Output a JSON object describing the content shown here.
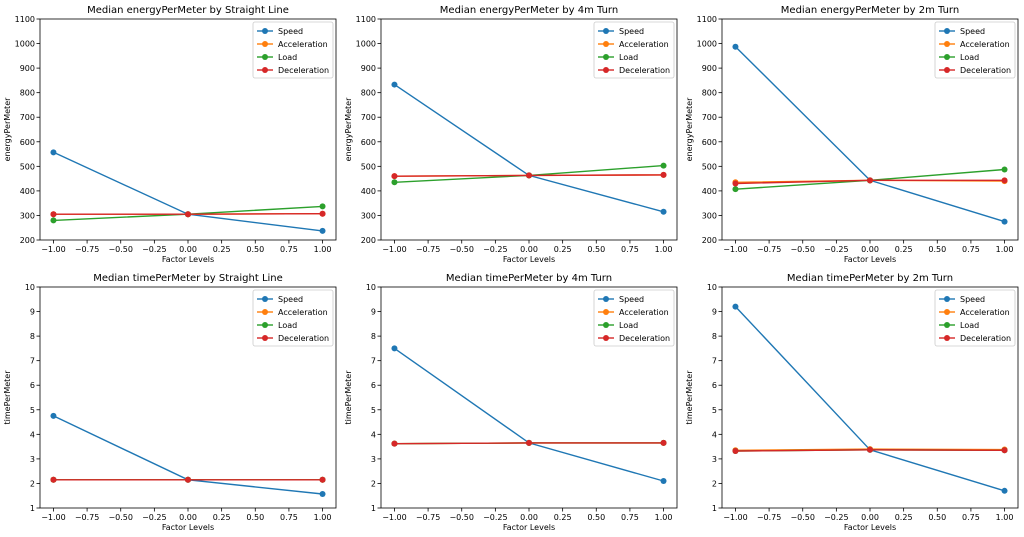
{
  "colors": {
    "Speed": "#1f77b4",
    "Acceleration": "#ff7f0e",
    "Load": "#2ca02c",
    "Deceleration": "#d62728"
  },
  "chart_data": [
    {
      "type": "line",
      "title": "Median energyPerMeter by Straight Line",
      "xlabel": "Factor Levels",
      "ylabel": "energyPerMeter",
      "x": [
        -1.0,
        0.0,
        1.0
      ],
      "xlim": [
        -1.1,
        1.1
      ],
      "ylim": [
        200,
        1100
      ],
      "xticks": [
        "−1.00",
        "−0.75",
        "−0.50",
        "−0.25",
        "0.00",
        "0.25",
        "0.50",
        "0.75",
        "1.00"
      ],
      "yticks": [
        "200",
        "300",
        "400",
        "500",
        "600",
        "700",
        "800",
        "900",
        "1000",
        "1100"
      ],
      "legend": "top-right",
      "grid": false,
      "series": [
        {
          "name": "Speed",
          "values": [
            557,
            305,
            237
          ]
        },
        {
          "name": "Acceleration",
          "values": [
            305,
            305,
            307
          ]
        },
        {
          "name": "Load",
          "values": [
            280,
            305,
            337
          ]
        },
        {
          "name": "Deceleration",
          "values": [
            305,
            305,
            307
          ]
        }
      ]
    },
    {
      "type": "line",
      "title": "Median energyPerMeter by 4m Turn",
      "xlabel": "Factor Levels",
      "ylabel": "energyPerMeter",
      "x": [
        -1.0,
        0.0,
        1.0
      ],
      "xlim": [
        -1.1,
        1.1
      ],
      "ylim": [
        200,
        1100
      ],
      "xticks": [
        "−1.00",
        "−0.75",
        "−0.50",
        "−0.25",
        "0.00",
        "0.25",
        "0.50",
        "0.75",
        "1.00"
      ],
      "yticks": [
        "200",
        "300",
        "400",
        "500",
        "600",
        "700",
        "800",
        "900",
        "1000",
        "1100"
      ],
      "legend": "top-right",
      "grid": false,
      "series": [
        {
          "name": "Speed",
          "values": [
            833,
            463,
            315
          ]
        },
        {
          "name": "Acceleration",
          "values": [
            460,
            463,
            465
          ]
        },
        {
          "name": "Load",
          "values": [
            435,
            463,
            503
          ]
        },
        {
          "name": "Deceleration",
          "values": [
            460,
            463,
            465
          ]
        }
      ]
    },
    {
      "type": "line",
      "title": "Median energyPerMeter by 2m Turn",
      "xlabel": "Factor Levels",
      "ylabel": "energyPerMeter",
      "x": [
        -1.0,
        0.0,
        1.0
      ],
      "xlim": [
        -1.1,
        1.1
      ],
      "ylim": [
        200,
        1100
      ],
      "xticks": [
        "−1.00",
        "−0.75",
        "−0.50",
        "−0.25",
        "0.00",
        "0.25",
        "0.50",
        "0.75",
        "1.00"
      ],
      "yticks": [
        "200",
        "300",
        "400",
        "500",
        "600",
        "700",
        "800",
        "900",
        "1000",
        "1100"
      ],
      "legend": "top-right",
      "grid": false,
      "series": [
        {
          "name": "Speed",
          "values": [
            987,
            443,
            275
          ]
        },
        {
          "name": "Acceleration",
          "values": [
            435,
            443,
            440
          ]
        },
        {
          "name": "Load",
          "values": [
            407,
            443,
            487
          ]
        },
        {
          "name": "Deceleration",
          "values": [
            430,
            443,
            443
          ]
        }
      ]
    },
    {
      "type": "line",
      "title": "Median timePerMeter by Straight Line",
      "xlabel": "Factor Levels",
      "ylabel": "timePerMeter",
      "x": [
        -1.0,
        0.0,
        1.0
      ],
      "xlim": [
        -1.1,
        1.1
      ],
      "ylim": [
        1,
        10
      ],
      "xticks": [
        "−1.00",
        "−0.75",
        "−0.50",
        "−0.25",
        "0.00",
        "0.25",
        "0.50",
        "0.75",
        "1.00"
      ],
      "yticks": [
        "1",
        "2",
        "3",
        "4",
        "5",
        "6",
        "7",
        "8",
        "9",
        "10"
      ],
      "legend": "top-right",
      "grid": false,
      "series": [
        {
          "name": "Speed",
          "values": [
            4.75,
            2.15,
            1.57
          ]
        },
        {
          "name": "Acceleration",
          "values": [
            2.15,
            2.15,
            2.15
          ]
        },
        {
          "name": "Load",
          "values": [
            2.15,
            2.15,
            2.15
          ]
        },
        {
          "name": "Deceleration",
          "values": [
            2.15,
            2.15,
            2.15
          ]
        }
      ]
    },
    {
      "type": "line",
      "title": "Median timePerMeter by 4m Turn",
      "xlabel": "Factor Levels",
      "ylabel": "timePerMeter",
      "x": [
        -1.0,
        0.0,
        1.0
      ],
      "xlim": [
        -1.1,
        1.1
      ],
      "ylim": [
        1,
        10
      ],
      "xticks": [
        "−1.00",
        "−0.75",
        "−0.50",
        "−0.25",
        "0.00",
        "0.25",
        "0.50",
        "0.75",
        "1.00"
      ],
      "yticks": [
        "1",
        "2",
        "3",
        "4",
        "5",
        "6",
        "7",
        "8",
        "9",
        "10"
      ],
      "legend": "top-right",
      "grid": false,
      "series": [
        {
          "name": "Speed",
          "values": [
            7.5,
            3.65,
            2.1
          ]
        },
        {
          "name": "Acceleration",
          "values": [
            3.62,
            3.65,
            3.65
          ]
        },
        {
          "name": "Load",
          "values": [
            3.62,
            3.65,
            3.65
          ]
        },
        {
          "name": "Deceleration",
          "values": [
            3.62,
            3.65,
            3.65
          ]
        }
      ]
    },
    {
      "type": "line",
      "title": "Median timePerMeter by 2m Turn",
      "xlabel": "Factor Levels",
      "ylabel": "timePerMeter",
      "x": [
        -1.0,
        0.0,
        1.0
      ],
      "xlim": [
        -1.1,
        1.1
      ],
      "ylim": [
        1,
        10
      ],
      "xticks": [
        "−1.00",
        "−0.75",
        "−0.50",
        "−0.25",
        "0.00",
        "0.25",
        "0.50",
        "0.75",
        "1.00"
      ],
      "yticks": [
        "1",
        "2",
        "3",
        "4",
        "5",
        "6",
        "7",
        "8",
        "9",
        "10"
      ],
      "legend": "top-right",
      "grid": false,
      "series": [
        {
          "name": "Speed",
          "values": [
            9.2,
            3.37,
            1.7
          ]
        },
        {
          "name": "Acceleration",
          "values": [
            3.35,
            3.4,
            3.38
          ]
        },
        {
          "name": "Load",
          "values": [
            3.32,
            3.37,
            3.35
          ]
        },
        {
          "name": "Deceleration",
          "values": [
            3.32,
            3.37,
            3.35
          ]
        }
      ]
    }
  ]
}
